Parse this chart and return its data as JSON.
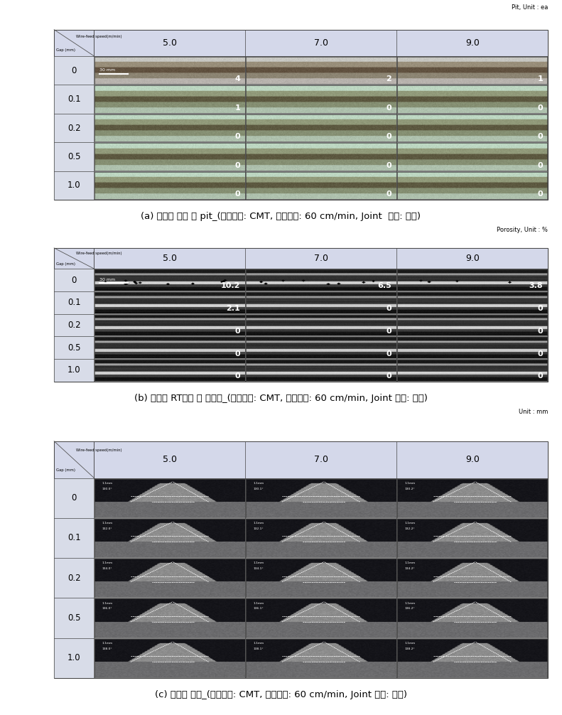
{
  "fig_width": 7.91,
  "fig_height": 10.06,
  "bg_color": "#ffffff",
  "header_bg": "#d4d8ea",
  "row_label_bg": "#d8dce8",
  "panel_a": {
    "unit_label": "Pit, Unit : ea",
    "col_labels": [
      "5.0",
      "7.0",
      "9.0"
    ],
    "row_labels": [
      "0",
      "0.1",
      "0.2",
      "0.5",
      "1.0"
    ],
    "values": [
      [
        "4",
        "2",
        "1"
      ],
      [
        "1",
        "0",
        "0"
      ],
      [
        "0",
        "0",
        "0"
      ],
      [
        "0",
        "0",
        "0"
      ],
      [
        "0",
        "0",
        "0"
      ]
    ],
    "caption": "(a) 용접부 외관 및 pit_(용접모드: CMT, 용접속도: 60 cm/min, Joint  형상: 수평)"
  },
  "panel_b": {
    "unit_label": "Porosity, Unit : %",
    "col_labels": [
      "5.0",
      "7.0",
      "9.0"
    ],
    "row_labels": [
      "0",
      "0.1",
      "0.2",
      "0.5",
      "1.0"
    ],
    "values": [
      [
        "10.2",
        "6.5",
        "3.8"
      ],
      [
        "2.1",
        "0",
        "0"
      ],
      [
        "0",
        "0",
        "0"
      ],
      [
        "0",
        "0",
        "0"
      ],
      [
        "0",
        "0",
        "0"
      ]
    ],
    "caption": "(b) 용접부 RT검사 및 기공률_(용접모드: CMT, 용접속도: 60 cm/min, Joint 형상: 수평)"
  },
  "panel_c": {
    "unit_label": "Unit : mm",
    "col_labels": [
      "5.0",
      "7.0",
      "9.0"
    ],
    "row_labels": [
      "0",
      "0.1",
      "0.2",
      "0.5",
      "1.0"
    ],
    "caption": "(c) 용접부 단면_(용접모드: CMT, 용접속도: 60 cm/min, Joint 형상: 수평)"
  },
  "header_wire": "Wire-feed speed(m/min)",
  "header_gap": "Gap (mm)"
}
